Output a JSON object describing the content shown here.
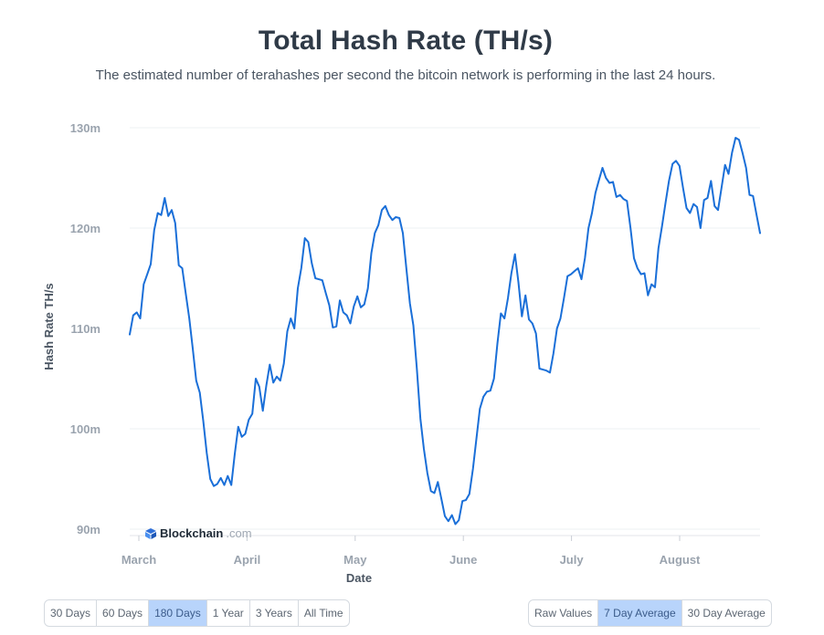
{
  "header": {
    "title": "Total Hash Rate (TH/s)",
    "subtitle": "The estimated number of terahashes per second the bitcoin network is performing in the last 24 hours."
  },
  "watermark": {
    "brand": "Blockchain",
    "suffix": ".com"
  },
  "timespan_buttons": [
    {
      "label": "30 Days",
      "active": false
    },
    {
      "label": "60 Days",
      "active": false
    },
    {
      "label": "180 Days",
      "active": true
    },
    {
      "label": "1 Year",
      "active": false
    },
    {
      "label": "3 Years",
      "active": false
    },
    {
      "label": "All Time",
      "active": false
    }
  ],
  "average_buttons": [
    {
      "label": "Raw Values",
      "active": false
    },
    {
      "label": "7 Day Average",
      "active": true
    },
    {
      "label": "30 Day Average",
      "active": false
    }
  ],
  "colors": {
    "line": "#1a6fd8",
    "grid": "#eef0f3",
    "active_button": "#b8d4fb"
  },
  "chart_data": {
    "type": "line",
    "title": "Total Hash Rate (TH/s)",
    "xlabel": "Date",
    "ylabel": "Hash Rate TH/s",
    "ylim": [
      90,
      130
    ],
    "y_ticks": [
      90,
      100,
      110,
      120,
      130
    ],
    "y_tick_labels": [
      "90m",
      "100m",
      "110m",
      "120m",
      "130m"
    ],
    "x_ticks": [
      "March",
      "April",
      "May",
      "June",
      "July",
      "August"
    ],
    "grid": true,
    "series": [
      {
        "values": [
          109.4,
          111.3,
          111.6,
          111.0,
          114.4,
          115.4,
          116.4,
          119.8,
          121.5,
          121.3,
          123.0,
          121.2,
          121.8,
          120.5,
          116.3,
          116.0,
          113.5,
          111.0,
          108.0,
          104.8,
          103.6,
          100.8,
          97.6,
          95.0,
          94.3,
          94.5,
          95.1,
          94.4,
          95.3,
          94.4,
          97.5,
          100.2,
          99.2,
          99.5,
          100.9,
          101.5,
          105.0,
          104.2,
          101.8,
          104.3,
          106.4,
          104.6,
          105.2,
          104.8,
          106.5,
          109.7,
          111.0,
          110.0,
          114.0,
          116.0,
          119.0,
          118.6,
          116.5,
          115.0,
          114.9,
          114.8,
          113.5,
          112.3,
          110.1,
          110.2,
          112.8,
          111.6,
          111.3,
          110.5,
          112.2,
          113.2,
          112.1,
          112.4,
          114.0,
          117.5,
          119.5,
          120.3,
          121.8,
          122.2,
          121.3,
          120.8,
          121.1,
          121.0,
          119.5,
          116.0,
          112.5,
          110.3,
          106.0,
          101.0,
          98.0,
          95.6,
          93.8,
          93.6,
          94.7,
          93.0,
          91.3,
          90.8,
          91.4,
          90.5,
          90.9,
          92.8,
          92.9,
          93.5,
          96.0,
          99.0,
          102.0,
          103.2,
          103.7,
          103.8,
          105.0,
          108.5,
          111.5,
          111.0,
          113.0,
          115.5,
          117.4,
          114.6,
          111.2,
          113.3,
          110.9,
          110.5,
          109.5,
          106.0,
          105.9,
          105.8,
          105.6,
          107.5,
          110.0,
          111.0,
          113.0,
          115.2,
          115.4,
          115.7,
          116.0,
          114.9,
          117.0,
          120.0,
          121.5,
          123.5,
          124.8,
          126.0,
          125.0,
          124.5,
          124.6,
          123.1,
          123.3,
          122.9,
          122.7,
          120.0,
          117.0,
          116.0,
          115.4,
          115.5,
          113.3,
          114.4,
          114.1,
          118.0,
          120.2,
          122.5,
          124.7,
          126.4,
          126.7,
          126.2,
          124.0,
          122.0,
          121.5,
          122.4,
          122.1,
          120.0,
          122.8,
          123.0,
          124.7,
          122.2,
          121.8,
          124.0,
          126.3,
          125.4,
          127.5,
          129.0,
          128.8,
          127.5,
          126.0,
          123.3,
          123.2,
          121.3,
          119.5
        ]
      }
    ]
  }
}
